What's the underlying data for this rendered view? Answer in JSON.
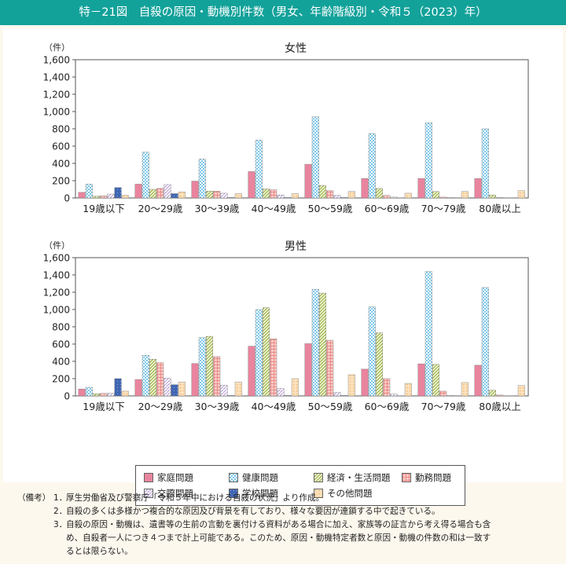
{
  "figure_title": "特－21図　自殺の原因・動機別件数（男女、年齢階級別・令和５（2023）年）",
  "legend_items": [
    {
      "label": "家庭問題",
      "color": "#e9849e",
      "pattern": "solid",
      "icon": "solid-pink-swatch"
    },
    {
      "label": "健康問題",
      "color": "#7ec8ea",
      "pattern": "checker",
      "icon": "blue-checker-swatch"
    },
    {
      "label": "経済・生活問題",
      "color": "#c2d66a",
      "pattern": "diag",
      "icon": "green-diagonal-swatch"
    },
    {
      "label": "勤務問題",
      "color": "#e46d6d",
      "pattern": "grid",
      "icon": "red-grid-swatch"
    },
    {
      "label": "交際問題",
      "color": "#b69ad6",
      "pattern": "wave",
      "icon": "purple-wave-swatch"
    },
    {
      "label": "学校問題",
      "color": "#3f66b3",
      "pattern": "dots",
      "icon": "navy-dots-swatch"
    },
    {
      "label": "その他問題",
      "color": "#f6b46c",
      "pattern": "dots-light",
      "icon": "orange-dots-swatch"
    }
  ],
  "chart_data": [
    {
      "type": "bar",
      "title": "女性",
      "unit_label": "（件）",
      "ylim": [
        0,
        1600
      ],
      "yticks": [
        "0",
        "200",
        "400",
        "600",
        "800",
        "1,000",
        "1,200",
        "1,400",
        "1,600"
      ],
      "categories": [
        "19歳以下",
        "20～29歳",
        "30～39歳",
        "40～49歳",
        "50～59歳",
        "60～69歳",
        "70～79歳",
        "80歳以上"
      ],
      "series": [
        {
          "name": "家庭問題",
          "values": [
            65,
            160,
            195,
            305,
            390,
            225,
            225,
            225
          ]
        },
        {
          "name": "健康問題",
          "values": [
            160,
            530,
            450,
            670,
            940,
            745,
            870,
            800
          ]
        },
        {
          "name": "経済・生活問題",
          "values": [
            20,
            100,
            80,
            105,
            145,
            110,
            75,
            35
          ]
        },
        {
          "name": "勤務問題",
          "values": [
            25,
            110,
            80,
            95,
            85,
            30,
            10,
            5
          ]
        },
        {
          "name": "交際問題",
          "values": [
            45,
            155,
            55,
            35,
            30,
            10,
            5,
            2
          ]
        },
        {
          "name": "学校問題",
          "values": [
            120,
            50,
            5,
            5,
            5,
            2,
            1,
            1
          ]
        },
        {
          "name": "その他問題",
          "values": [
            30,
            70,
            50,
            50,
            75,
            55,
            75,
            85
          ]
        }
      ]
    },
    {
      "type": "bar",
      "title": "男性",
      "unit_label": "（件）",
      "ylim": [
        0,
        1600
      ],
      "yticks": [
        "0",
        "200",
        "400",
        "600",
        "800",
        "1,000",
        "1,200",
        "1,400",
        "1,600"
      ],
      "categories": [
        "19歳以下",
        "20～29歳",
        "30～39歳",
        "40～49歳",
        "50～59歳",
        "60～69歳",
        "70～79歳",
        "80歳以上"
      ],
      "series": [
        {
          "name": "家庭問題",
          "values": [
            80,
            190,
            375,
            575,
            605,
            310,
            370,
            355
          ]
        },
        {
          "name": "健康問題",
          "values": [
            100,
            470,
            675,
            1000,
            1235,
            1030,
            1440,
            1255
          ]
        },
        {
          "name": "経済・生活問題",
          "values": [
            25,
            425,
            690,
            1020,
            1190,
            730,
            365,
            65
          ]
        },
        {
          "name": "勤務問題",
          "values": [
            30,
            385,
            455,
            660,
            645,
            200,
            55,
            10
          ]
        },
        {
          "name": "交際問題",
          "values": [
            30,
            205,
            125,
            85,
            40,
            20,
            5,
            2
          ]
        },
        {
          "name": "学校問題",
          "values": [
            200,
            130,
            5,
            5,
            5,
            2,
            1,
            1
          ]
        },
        {
          "name": "その他問題",
          "values": [
            55,
            160,
            160,
            200,
            245,
            145,
            155,
            120
          ]
        }
      ]
    }
  ],
  "notes": {
    "heading": "（備考）",
    "items": [
      {
        "num": "1．",
        "lines": [
          "厚生労働省及び警察庁「令和５年中における自殺の状況」より作成。"
        ]
      },
      {
        "num": "2．",
        "lines": [
          "自殺の多くは多様かつ複合的な原因及び背景を有しており、様々な要因が連鎖する中で起きている。"
        ]
      },
      {
        "num": "3．",
        "lines": [
          "自殺の原因・動機は、遺書等の生前の言動を裏付ける資料がある場合に加え、家族等の証言から考え得る場合も含",
          "め、自殺者一人につき４つまで計上可能である。このため、原因・動機特定者数と原因・動機の件数の和は一致す",
          "るとは限らない。"
        ]
      }
    ]
  }
}
